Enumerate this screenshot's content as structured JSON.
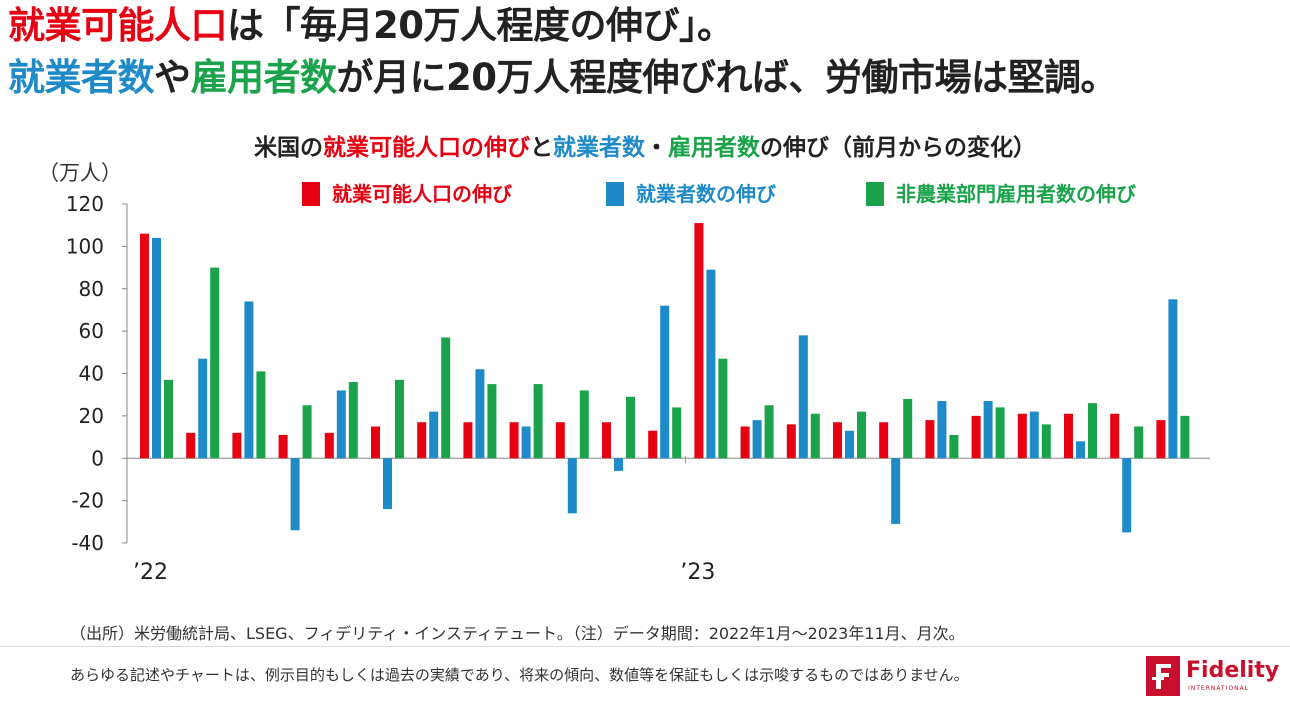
{
  "headline": {
    "line1": [
      {
        "text": "就業可能人口",
        "color": "red"
      },
      {
        "text": "は「毎月20万人程度の伸び」。",
        "color": "dark"
      }
    ],
    "line2": [
      {
        "text": "就業者数",
        "color": "blue"
      },
      {
        "text": "や",
        "color": "dark"
      },
      {
        "text": "雇用者数",
        "color": "green"
      },
      {
        "text": "が月に20万人程度伸びれば、労働市場は堅調。",
        "color": "dark"
      }
    ]
  },
  "subtitle": [
    {
      "text": "米国の",
      "color": "dark"
    },
    {
      "text": "就業可能人口の伸び",
      "color": "red"
    },
    {
      "text": "と",
      "color": "dark"
    },
    {
      "text": "就業者数",
      "color": "blue"
    },
    {
      "text": "・",
      "color": "dark"
    },
    {
      "text": "雇用者数",
      "color": "green"
    },
    {
      "text": "の伸び（前月からの変化）",
      "color": "dark"
    }
  ],
  "colors": {
    "red": "#e60012",
    "blue": "#1f8ac8",
    "green": "#1aa34a",
    "dark": "#222222"
  },
  "chart_data": {
    "type": "bar",
    "ylabel": "（万人）",
    "ylim": [
      -40,
      120
    ],
    "yticks": [
      120,
      100,
      80,
      60,
      40,
      20,
      0,
      -20,
      -40
    ],
    "grid": false,
    "legend_position": "top",
    "x_labels": [
      {
        "index": 0,
        "label": "’22"
      },
      {
        "index": 12,
        "label": "’23"
      }
    ],
    "categories": [
      "2022-01",
      "2022-02",
      "2022-03",
      "2022-04",
      "2022-05",
      "2022-06",
      "2022-07",
      "2022-08",
      "2022-09",
      "2022-10",
      "2022-11",
      "2022-12",
      "2023-01",
      "2023-02",
      "2023-03",
      "2023-04",
      "2023-05",
      "2023-06",
      "2023-07",
      "2023-08",
      "2023-09",
      "2023-10",
      "2023-11"
    ],
    "series": [
      {
        "name": "就業可能人口の伸び",
        "color": "#e60012",
        "values": [
          106,
          12,
          12,
          11,
          12,
          15,
          17,
          17,
          17,
          17,
          17,
          13,
          111,
          15,
          16,
          17,
          17,
          18,
          20,
          21,
          21,
          21,
          18
        ]
      },
      {
        "name": "就業者数の伸び",
        "color": "#1f8ac8",
        "values": [
          104,
          47,
          74,
          -34,
          32,
          -24,
          22,
          42,
          15,
          -26,
          -6,
          72,
          89,
          18,
          58,
          13,
          -31,
          27,
          27,
          22,
          8,
          -35,
          75
        ]
      },
      {
        "name": "非農業部門雇用者数の伸び",
        "color": "#1aa34a",
        "values": [
          37,
          90,
          41,
          25,
          36,
          37,
          57,
          35,
          35,
          32,
          29,
          24,
          47,
          25,
          21,
          22,
          28,
          11,
          24,
          16,
          26,
          15,
          20
        ]
      }
    ]
  },
  "footer": {
    "note": "（出所）米労働統計局、LSEG、フィデリティ・インスティテュート。（注）データ期間：2022年1月～2023年11月、月次。",
    "disclaimer": "あらゆる記述やチャートは、例示目的もしくは過去の実績であり、将来の傾向、数値等を保証もしくは示唆するものではありません。"
  },
  "logo": {
    "name": "Fidelity",
    "sub": "INTERNATIONAL",
    "mark": "F"
  }
}
